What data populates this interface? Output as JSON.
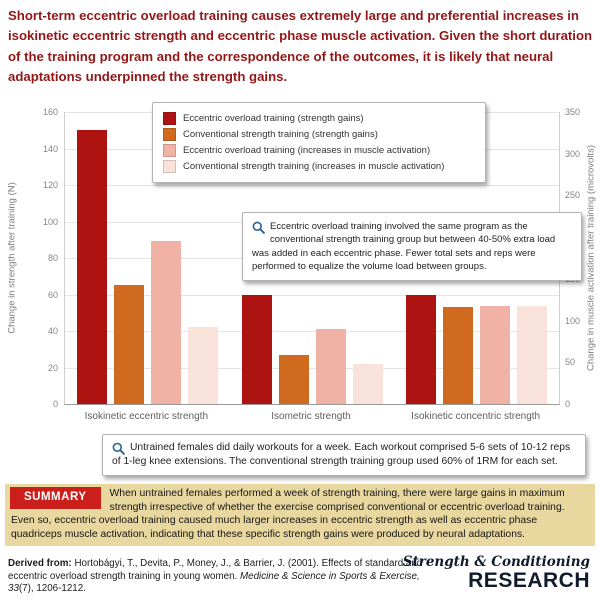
{
  "headline": "Short-term eccentric overload training causes extremely large and preferential increases in isokinetic eccentric strength and eccentric phase muscle activation. Given the short duration of the training program and the correspondence of the outcomes, it is likely that neural adaptations underpinned the strength gains.",
  "chart_data": {
    "type": "bar",
    "categories": [
      "Isokinetic eccentric strength",
      "Isometric strength",
      "Isokinetic concentric strength"
    ],
    "series": [
      {
        "name": "Eccentric overload training (strength gains)",
        "axis": "left",
        "color": "#ad1411",
        "values": [
          150,
          60,
          60
        ]
      },
      {
        "name": "Conventional strength training (strength gains)",
        "axis": "left",
        "color": "#d06a1e",
        "values": [
          65,
          27,
          53
        ]
      },
      {
        "name": "Eccentric overload training (increases in muscle activation)",
        "axis": "right",
        "color": "#f0b2a4",
        "values": [
          195,
          90,
          117
        ]
      },
      {
        "name": "Conventional strength training (increases in muscle activation)",
        "axis": "right",
        "color": "#f9e2da",
        "values": [
          92,
          48,
          117
        ]
      }
    ],
    "left_axis": {
      "label": "Change in strength after training (N)",
      "min": 0,
      "max": 160,
      "step": 20
    },
    "right_axis": {
      "label": "Change in muscle activation after training (microvolts)",
      "min": 0,
      "max": 350,
      "step": 50
    },
    "grid": true,
    "legend_position": "top-inset"
  },
  "callouts": [
    {
      "icon": "magnifier-icon",
      "text": "Eccentric overload training involved the same program as the conventional strength training group but between 40-50% extra load was added in each eccentric phase. Fewer total sets and reps were performed to equalize the volume load between groups."
    },
    {
      "icon": "magnifier-icon",
      "text": "Untrained females did daily workouts for a week. Each workout comprised 5-6 sets of 10-12 reps of 1-leg knee extensions. The conventional strength training group used 60% of 1RM for each set."
    }
  ],
  "summary": {
    "label": "SUMMARY",
    "text": "When untrained females performed a week of strength training, there were large gains in maximum strength irrespective of whether the exercise comprised conventional or eccentric overload training. Even so, eccentric overload training caused much larger increases in eccentric strength as well as eccentric phase quadriceps muscle activation, indicating that these specific strength gains were produced by neural adaptations."
  },
  "citation": {
    "prefix": "Derived from:",
    "body": "Hortobágyi, T., Devita, P., Money, J., & Barrier, J. (2001). Effects of standard and eccentric overload strength training in young women.",
    "journal": "Medicine & Science in Sports & Exercise, 33",
    "pages": "(7), 1206-1212."
  },
  "logo": {
    "line1": "Strength & Conditioning",
    "line2": "Research"
  },
  "colors": {
    "headline": "#931717",
    "summary_bg": "#e9d7a0",
    "summary_label_bg": "#cb1f1c",
    "callout_icon": "#2a6496"
  }
}
